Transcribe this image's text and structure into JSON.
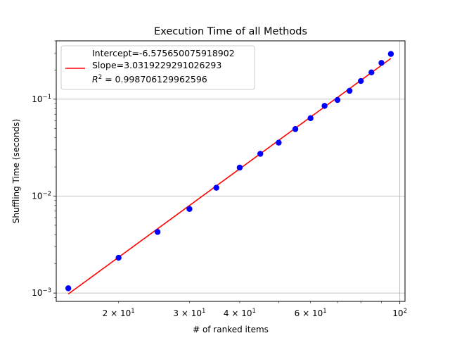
{
  "chart_data": {
    "type": "scatter",
    "title": "Execution Time of all Methods",
    "xlabel": "# of ranked items",
    "ylabel": "Shuffling Time (seconds)",
    "xscale": "log",
    "yscale": "log",
    "xlim": [
      14.0,
      103.0
    ],
    "ylim": [
      0.00082,
      0.4
    ],
    "grid": "on (major ticks)",
    "legend_position": "top-left",
    "x_major_ticks": [
      {
        "value": 100,
        "base": "10",
        "exp": "2"
      }
    ],
    "x_minor_ticks": [
      {
        "value": 20,
        "mant": "2 × 10",
        "exp": "1"
      },
      {
        "value": 30,
        "mant": "3 × 10",
        "exp": "1"
      },
      {
        "value": 40,
        "mant": "4 × 10",
        "exp": "1"
      },
      {
        "value": 60,
        "mant": "6 × 10",
        "exp": "1"
      }
    ],
    "y_major_ticks": [
      {
        "value": 0.001,
        "base": "10",
        "exp": "−3"
      },
      {
        "value": 0.01,
        "base": "10",
        "exp": "−2"
      },
      {
        "value": 0.1,
        "base": "10",
        "exp": "−1"
      }
    ],
    "scatter": {
      "color": "#0000ff",
      "x": [
        15,
        20,
        25,
        30,
        35,
        40,
        45,
        50,
        55,
        60,
        65,
        70,
        75,
        80,
        85,
        90,
        95
      ],
      "y": [
        0.00112,
        0.00231,
        0.00427,
        0.00737,
        0.0122,
        0.0197,
        0.0273,
        0.0356,
        0.0492,
        0.0637,
        0.0853,
        0.0981,
        0.122,
        0.154,
        0.189,
        0.237,
        0.293
      ]
    },
    "fit_line": {
      "color": "#ff0000",
      "intercept": -6.575650075918902,
      "slope": 3.0319229291026293,
      "x_range": [
        15,
        95
      ]
    },
    "legend": {
      "line1": "Intercept=-6.575650075918902",
      "line2": "Slope=3.0319229291026293",
      "line3_prefix": "R",
      "line3_sup": "2",
      "line3_suffix": " = 0.998706129962596"
    }
  }
}
